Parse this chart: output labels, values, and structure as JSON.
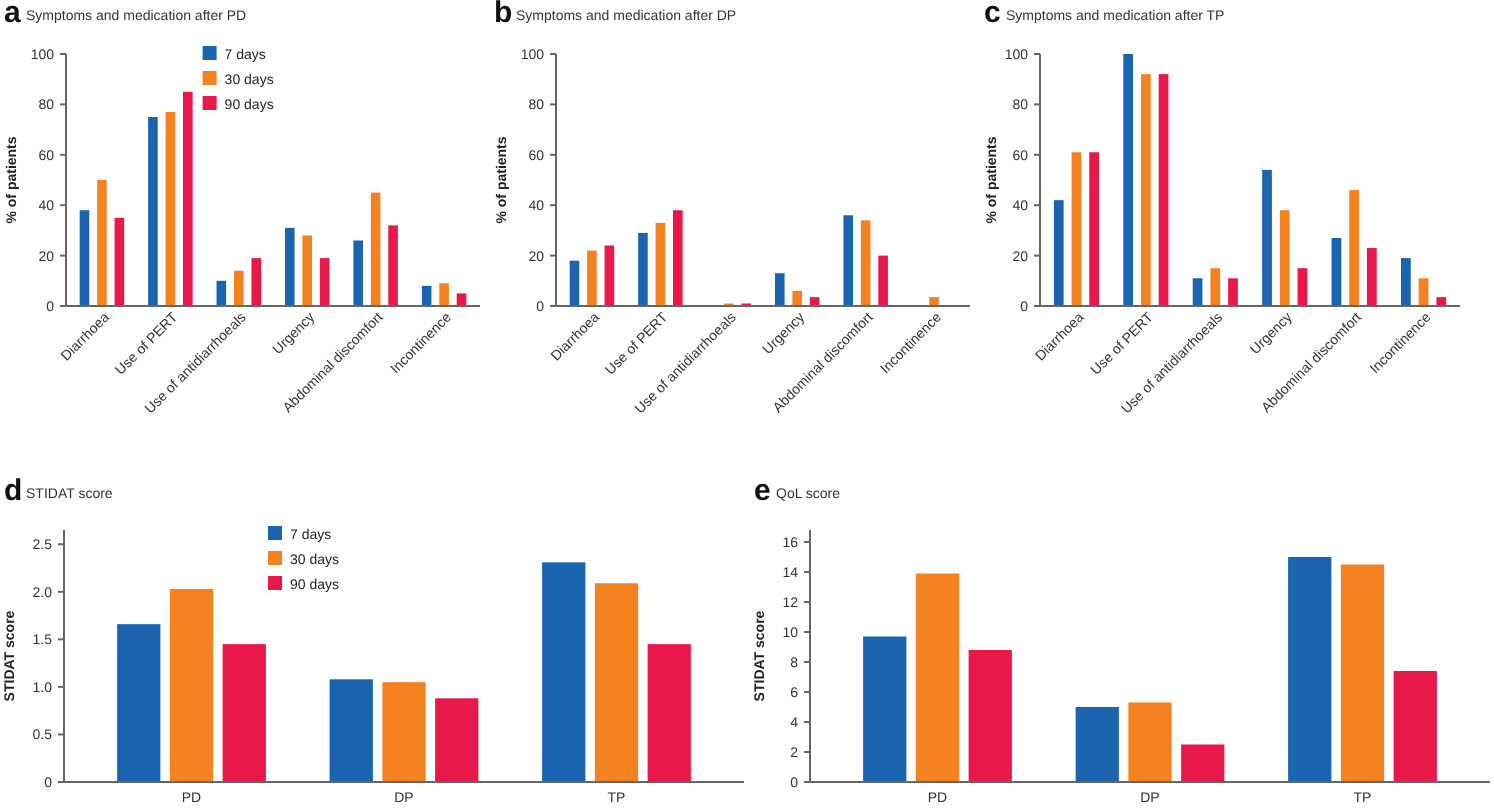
{
  "chart_data": [
    {
      "type": "bar",
      "title": "Symptoms and medication after PD",
      "annotations": [
        "a"
      ],
      "ylabel": "% of patients",
      "categories": [
        "Diarrhoea",
        "Use of PERT",
        "Use of antidiarrhoeals",
        "Urgency",
        "Abdominal discomfort",
        "Incontinence"
      ],
      "ylim": [
        0,
        100
      ],
      "yticks": [
        0,
        20,
        40,
        60,
        80,
        100
      ],
      "legend": "top",
      "series": [
        {
          "name": "7 days",
          "color": "#1a64b0",
          "values": [
            38,
            75,
            10,
            31,
            26,
            8
          ]
        },
        {
          "name": "30 days",
          "color": "#f58220",
          "values": [
            50,
            77,
            14,
            28,
            45,
            9
          ]
        },
        {
          "name": "90 days",
          "color": "#e8184a",
          "values": [
            35,
            85,
            19,
            19,
            32,
            5
          ]
        }
      ]
    },
    {
      "type": "bar",
      "title": "Symptoms and medication after DP",
      "annotations": [
        "b"
      ],
      "ylabel": "% of patients",
      "categories": [
        "Diarrhoea",
        "Use of PERT",
        "Use of antidiarrhoeals",
        "Urgency",
        "Abdominal discomfort",
        "Incontinence"
      ],
      "ylim": [
        0,
        100
      ],
      "yticks": [
        0,
        20,
        40,
        60,
        80,
        100
      ],
      "series": [
        {
          "color": "#1a64b0",
          "values": [
            18,
            29,
            0,
            13,
            36,
            0
          ]
        },
        {
          "color": "#f58220",
          "values": [
            22,
            33,
            1,
            6,
            34,
            3.5
          ]
        },
        {
          "color": "#e8184a",
          "values": [
            24,
            38,
            1,
            3.5,
            20,
            0
          ]
        }
      ]
    },
    {
      "type": "bar",
      "title": "Symptoms and medication after TP",
      "annotations": [
        "c"
      ],
      "ylabel": "% of patients",
      "categories": [
        "Diarrhoea",
        "Use of PERT",
        "Use of antidiarrhoeals",
        "Urgency",
        "Abdominal discomfort",
        "Incontinence"
      ],
      "ylim": [
        0,
        100
      ],
      "yticks": [
        0,
        20,
        40,
        60,
        80,
        100
      ],
      "series": [
        {
          "color": "#1a64b0",
          "values": [
            42,
            100,
            11,
            54,
            27,
            19
          ]
        },
        {
          "color": "#f58220",
          "values": [
            61,
            92,
            15,
            38,
            46,
            11
          ]
        },
        {
          "color": "#e8184a",
          "values": [
            61,
            92,
            11,
            15,
            23,
            3.5
          ]
        }
      ]
    },
    {
      "type": "bar",
      "title": "STIDAT score",
      "annotations": [
        "d"
      ],
      "ylabel": "STIDAT score",
      "categories": [
        "PD",
        "DP",
        "TP"
      ],
      "ylim": [
        0,
        2.65
      ],
      "yticks": [
        0,
        0.5,
        {
          "value": 1,
          "label": "1.0"
        },
        1.5,
        {
          "value": 2,
          "label": "2.0"
        },
        2.5
      ],
      "legend": "top",
      "series": [
        {
          "name": "7 days",
          "color": "#1a64b0",
          "values": [
            1.66,
            1.08,
            2.31
          ]
        },
        {
          "name": "30 days",
          "color": "#f58220",
          "values": [
            2.03,
            1.05,
            2.09
          ]
        },
        {
          "name": "90 days",
          "color": "#e8184a",
          "values": [
            1.45,
            0.88,
            1.45
          ]
        }
      ]
    },
    {
      "type": "bar",
      "title": "QoL score",
      "annotations": [
        "e"
      ],
      "ylabel": "STIDAT score",
      "categories": [
        "PD",
        "DP",
        "TP"
      ],
      "ylim": [
        0,
        16.8
      ],
      "yticks": [
        0,
        2,
        4,
        6,
        8,
        10,
        12,
        14,
        16
      ],
      "series": [
        {
          "color": "#1a64b0",
          "values": [
            9.7,
            5,
            15
          ]
        },
        {
          "color": "#f58220",
          "values": [
            13.9,
            5.3,
            14.5
          ]
        },
        {
          "color": "#e8184a",
          "values": [
            8.8,
            2.5,
            7.4
          ]
        }
      ]
    }
  ]
}
